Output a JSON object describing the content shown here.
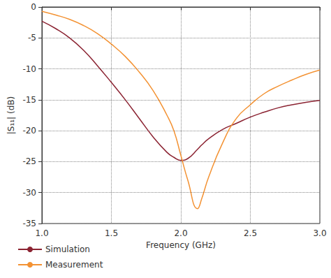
{
  "chart_data": {
    "type": "line",
    "x_label": "Frequency (GHz)",
    "y_label": "|S₁₁| (dB)",
    "x": [
      1.0,
      1.1,
      1.2,
      1.3,
      1.4,
      1.5,
      1.6,
      1.7,
      1.8,
      1.9,
      1.95,
      2.0,
      2.05,
      2.12,
      2.15,
      2.2,
      2.3,
      2.4,
      2.5,
      2.6,
      2.7,
      2.8,
      2.9,
      3.0
    ],
    "series": [
      {
        "name": "Simulation",
        "color": "#8b2332",
        "values": [
          -2.3,
          -3.5,
          -5.0,
          -7.0,
          -9.5,
          -12.2,
          -15.0,
          -18.0,
          -21.0,
          -23.5,
          -24.3,
          -24.8,
          -24.5,
          -23.0,
          -22.3,
          -21.3,
          -19.8,
          -18.8,
          -17.8,
          -17.0,
          -16.3,
          -15.8,
          -15.4,
          -15.1
        ]
      },
      {
        "name": "Measurement",
        "color": "#f39233",
        "values": [
          -0.7,
          -1.3,
          -2.0,
          -3.0,
          -4.3,
          -6.0,
          -8.0,
          -10.5,
          -13.5,
          -17.5,
          -20.0,
          -24.0,
          -28.0,
          -32.6,
          -31.0,
          -27.5,
          -22.0,
          -18.0,
          -15.8,
          -14.0,
          -12.8,
          -11.8,
          -10.9,
          -10.2
        ]
      }
    ],
    "xlim": [
      1.0,
      3.0
    ],
    "xticks": [
      {
        "value": 1.0,
        "label": "1.0"
      },
      {
        "value": 1.5,
        "label": "1.5"
      },
      {
        "value": 2.0,
        "label": "2.0"
      },
      {
        "value": 2.5,
        "label": "2.5"
      },
      {
        "value": 3.0,
        "label": "3.0"
      }
    ],
    "ylim": [
      -35,
      0
    ],
    "yticks": [
      -35,
      -30,
      -25,
      -20,
      -15,
      -10,
      -5,
      0
    ],
    "grid": true,
    "legend": "bottom-left"
  }
}
